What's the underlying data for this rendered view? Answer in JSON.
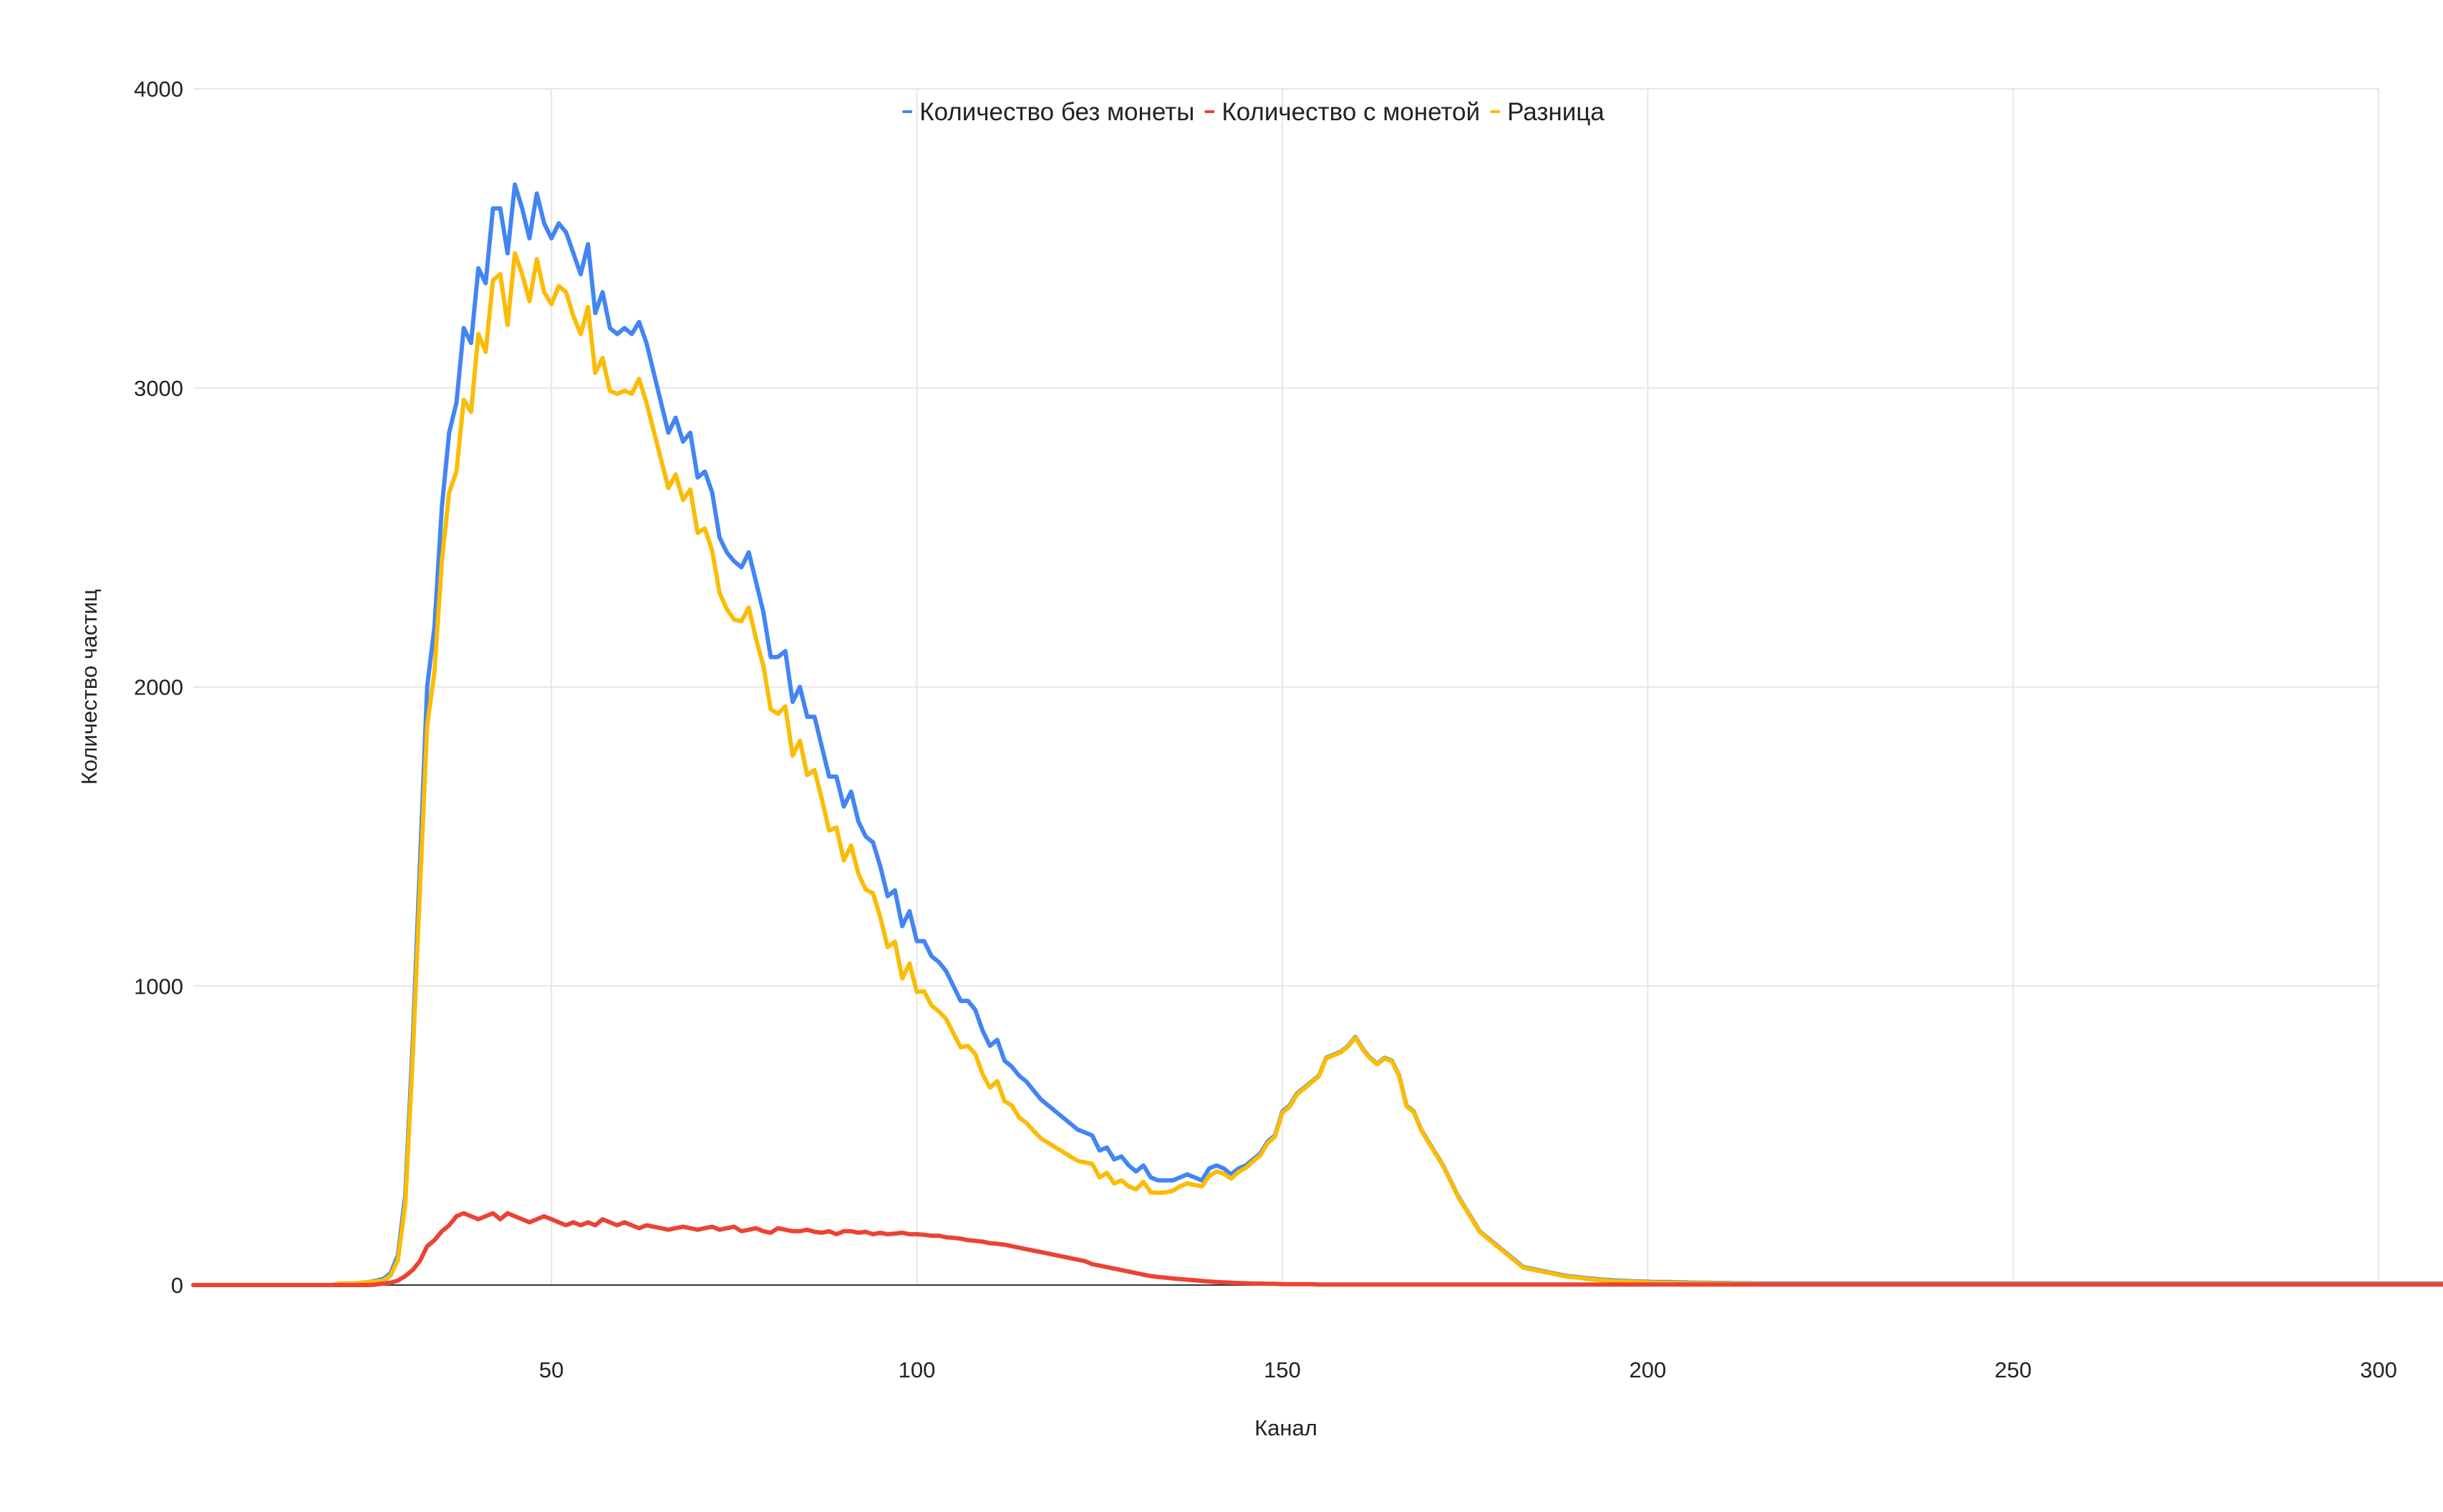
{
  "chart_data": {
    "type": "line",
    "title": "",
    "xlabel": "Канал",
    "ylabel": "Количество частиц",
    "xlim": [
      1,
      300
    ],
    "ylim": [
      0,
      4000
    ],
    "x_ticks": [
      50,
      100,
      150,
      200,
      250,
      300
    ],
    "y_ticks": [
      0,
      1000,
      2000,
      3000,
      4000
    ],
    "grid": true,
    "legend": "top-center",
    "x_start": 1,
    "x_step": 1,
    "series": [
      {
        "name": "Количество без монеты",
        "color": "#4285f4",
        "values": [
          0,
          0,
          0,
          0,
          0,
          0,
          0,
          0,
          0,
          0,
          0,
          0,
          0,
          0,
          0,
          0,
          0,
          0,
          0,
          0,
          5,
          5,
          5,
          8,
          10,
          15,
          20,
          40,
          100,
          300,
          800,
          1400,
          2000,
          2200,
          2600,
          2850,
          2950,
          3200,
          3150,
          3400,
          3350,
          3600,
          3600,
          3450,
          3680,
          3600,
          3500,
          3650,
          3550,
          3500,
          3550,
          3520,
          3450,
          3380,
          3480,
          3250,
          3320,
          3200,
          3180,
          3200,
          3180,
          3220,
          3150,
          3050,
          2950,
          2850,
          2900,
          2820,
          2850,
          2700,
          2720,
          2650,
          2500,
          2450,
          2420,
          2400,
          2450,
          2350,
          2250,
          2100,
          2100,
          2120,
          1950,
          2000,
          1900,
          1900,
          1800,
          1700,
          1700,
          1600,
          1650,
          1550,
          1500,
          1480,
          1400,
          1300,
          1320,
          1200,
          1250,
          1150,
          1150,
          1100,
          1080,
          1050,
          1000,
          950,
          950,
          920,
          850,
          800,
          820,
          750,
          730,
          700,
          680,
          650,
          620,
          600,
          580,
          560,
          540,
          520,
          510,
          500,
          450,
          460,
          420,
          430,
          400,
          380,
          400,
          360,
          350,
          350,
          350,
          360,
          370,
          360,
          350,
          390,
          400,
          390,
          370,
          390,
          400,
          420,
          440,
          480,
          500,
          580,
          600,
          640,
          660,
          680,
          700,
          760,
          770,
          780,
          800,
          830,
          790,
          760,
          740,
          760,
          750,
          700,
          600,
          580,
          520,
          480,
          440,
          400,
          350,
          300,
          260,
          220,
          180,
          160,
          140,
          120,
          100,
          80,
          60,
          55,
          50,
          45,
          40,
          35,
          30,
          28,
          25,
          22,
          20,
          18,
          16,
          15,
          14,
          13,
          12,
          11,
          10,
          10,
          10,
          9,
          9,
          8,
          8,
          8,
          7,
          7,
          7,
          6,
          6,
          6,
          5,
          5,
          5,
          5,
          5,
          5,
          5,
          5,
          5,
          5,
          5,
          5,
          5,
          5,
          5,
          5,
          5,
          5,
          5,
          5,
          5,
          5,
          5,
          5,
          5,
          5,
          5,
          5,
          5,
          5,
          5,
          5,
          5,
          5,
          5,
          5,
          5,
          5,
          5,
          5,
          5,
          5,
          5,
          5,
          5,
          5,
          5,
          5,
          5,
          5,
          5,
          5,
          5,
          5,
          5,
          5,
          5,
          5,
          5,
          5,
          5,
          5,
          5,
          5,
          5,
          5,
          5,
          5,
          5,
          5,
          5,
          5,
          5,
          5,
          5,
          5,
          5,
          5,
          5,
          5,
          5,
          5,
          5,
          5,
          5,
          5,
          5,
          5,
          5,
          5,
          5,
          5,
          5,
          5,
          5,
          5,
          5,
          5,
          5,
          5,
          5,
          5,
          5
        ]
      },
      {
        "name": "Количество с монетой",
        "color": "#ea4335",
        "values": [
          0,
          0,
          0,
          0,
          0,
          0,
          0,
          0,
          0,
          0,
          0,
          0,
          0,
          0,
          0,
          0,
          0,
          0,
          0,
          0,
          0,
          0,
          0,
          0,
          0,
          2,
          5,
          8,
          15,
          30,
          50,
          80,
          130,
          150,
          180,
          200,
          230,
          240,
          230,
          220,
          230,
          240,
          220,
          240,
          230,
          220,
          210,
          220,
          230,
          220,
          210,
          200,
          210,
          200,
          210,
          200,
          220,
          210,
          200,
          210,
          200,
          190,
          200,
          195,
          190,
          185,
          190,
          195,
          190,
          185,
          190,
          195,
          185,
          190,
          195,
          180,
          185,
          190,
          180,
          175,
          190,
          185,
          180,
          180,
          185,
          178,
          175,
          180,
          170,
          180,
          180,
          175,
          178,
          170,
          175,
          170,
          172,
          175,
          170,
          170,
          168,
          165,
          165,
          160,
          158,
          155,
          150,
          148,
          145,
          140,
          138,
          135,
          130,
          125,
          120,
          115,
          110,
          105,
          100,
          95,
          90,
          85,
          80,
          70,
          65,
          60,
          55,
          50,
          45,
          40,
          35,
          30,
          27,
          25,
          22,
          20,
          18,
          16,
          14,
          12,
          10,
          9,
          8,
          7,
          6,
          5,
          5,
          4,
          4,
          3,
          3,
          3,
          3,
          3,
          2,
          2,
          2,
          2,
          2,
          2,
          2,
          2,
          2,
          2,
          2,
          2,
          2,
          2,
          2,
          2,
          2,
          2,
          2,
          2,
          2,
          2,
          2,
          2,
          2,
          2,
          2,
          2,
          2,
          2,
          2,
          2,
          2,
          2,
          2,
          2,
          2,
          2,
          2,
          2,
          2,
          2,
          2,
          2,
          2,
          2,
          2,
          2,
          2,
          2,
          2,
          2,
          2,
          2,
          2,
          2,
          2,
          2,
          2,
          2,
          2,
          2,
          2,
          2,
          2,
          2,
          2,
          2,
          2,
          2,
          2,
          2,
          2,
          2,
          2,
          2,
          2,
          2,
          2,
          2,
          2,
          2,
          2,
          2,
          2,
          2,
          2,
          2,
          2,
          2,
          2,
          2,
          2,
          2,
          2,
          2,
          2,
          2,
          2,
          2,
          2,
          2,
          2,
          2,
          2,
          2,
          2,
          2,
          2,
          2,
          2,
          2,
          2,
          2,
          2,
          2,
          2,
          2,
          2,
          2,
          2,
          2,
          2,
          2,
          2,
          2,
          2,
          2,
          2,
          2,
          2,
          2,
          2,
          2,
          2,
          2,
          2,
          2,
          2,
          2,
          2,
          2,
          2,
          2,
          2,
          2,
          2,
          2,
          2,
          2,
          2,
          2,
          2,
          2,
          2,
          2,
          2,
          2,
          2,
          2,
          2,
          2,
          2,
          2,
          2,
          2,
          2,
          2,
          2,
          2,
          2,
          2,
          2,
          2,
          2,
          2
        ]
      },
      {
        "name": "Разница",
        "color": "#fbbc04",
        "values": [
          0,
          0,
          0,
          0,
          0,
          0,
          0,
          0,
          0,
          0,
          0,
          0,
          0,
          0,
          0,
          0,
          0,
          0,
          0,
          0,
          5,
          5,
          5,
          8,
          10,
          13,
          15,
          32,
          85,
          270,
          750,
          1320,
          1870,
          2050,
          2420,
          2650,
          2720,
          2960,
          2920,
          3180,
          3120,
          3360,
          3380,
          3210,
          3450,
          3380,
          3290,
          3430,
          3320,
          3280,
          3340,
          3320,
          3240,
          3180,
          3270,
          3050,
          3100,
          2990,
          2980,
          2990,
          2980,
          3030,
          2950,
          2855,
          2760,
          2665,
          2710,
          2625,
          2660,
          2515,
          2530,
          2455,
          2315,
          2260,
          2225,
          2220,
          2265,
          2160,
          2070,
          1925,
          1910,
          1935,
          1770,
          1820,
          1705,
          1722,
          1625,
          1520,
          1530,
          1420,
          1470,
          1375,
          1322,
          1310,
          1230,
          1130,
          1148,
          1025,
          1075,
          980,
          982,
          935,
          915,
          890,
          842,
          795,
          800,
          772,
          705,
          660,
          682,
          615,
          600,
          560,
          542,
          515,
          490,
          475,
          460,
          445,
          430,
          415,
          410,
          405,
          360,
          375,
          340,
          350,
          330,
          320,
          345,
          310,
          308,
          310,
          315,
          330,
          340,
          335,
          330,
          365,
          380,
          372,
          356,
          378,
          392,
          414,
          434,
          475,
          496,
          576,
          596,
          637,
          657,
          678,
          698,
          758,
          768,
          778,
          798,
          828,
          788,
          758,
          738,
          758,
          748,
          698,
          598,
          578,
          518,
          478,
          438,
          398,
          348,
          298,
          258,
          218,
          178,
          158,
          138,
          118,
          98,
          78,
          58,
          53,
          48,
          43,
          38,
          33,
          28,
          26,
          23,
          20,
          18,
          16,
          14,
          13,
          12,
          11,
          10,
          9,
          8,
          8,
          8,
          7,
          7,
          6,
          6,
          6,
          5,
          5,
          5,
          4,
          4,
          4,
          3,
          3,
          3,
          3,
          3,
          3,
          3,
          3,
          3,
          3,
          3,
          3,
          3,
          3,
          3,
          3,
          3,
          3,
          3,
          3,
          3,
          3,
          3,
          3,
          3,
          3,
          3,
          3,
          3,
          3,
          3,
          3,
          3,
          3,
          3,
          3,
          3,
          3,
          3,
          3,
          3,
          3,
          3,
          3,
          3,
          3,
          3,
          3,
          3,
          3,
          3,
          3,
          3,
          3,
          3,
          3,
          3,
          3,
          3,
          3,
          3,
          3,
          3,
          3,
          3,
          3,
          3,
          3,
          3,
          3,
          3,
          3,
          3,
          3,
          3,
          3,
          3,
          3,
          3,
          3,
          3,
          3,
          3,
          3,
          3,
          3,
          3,
          3,
          3,
          3,
          3,
          3,
          3,
          3,
          3,
          3,
          3,
          3,
          3,
          3,
          3,
          3,
          3,
          3,
          3,
          3,
          3,
          3
        ]
      }
    ]
  }
}
